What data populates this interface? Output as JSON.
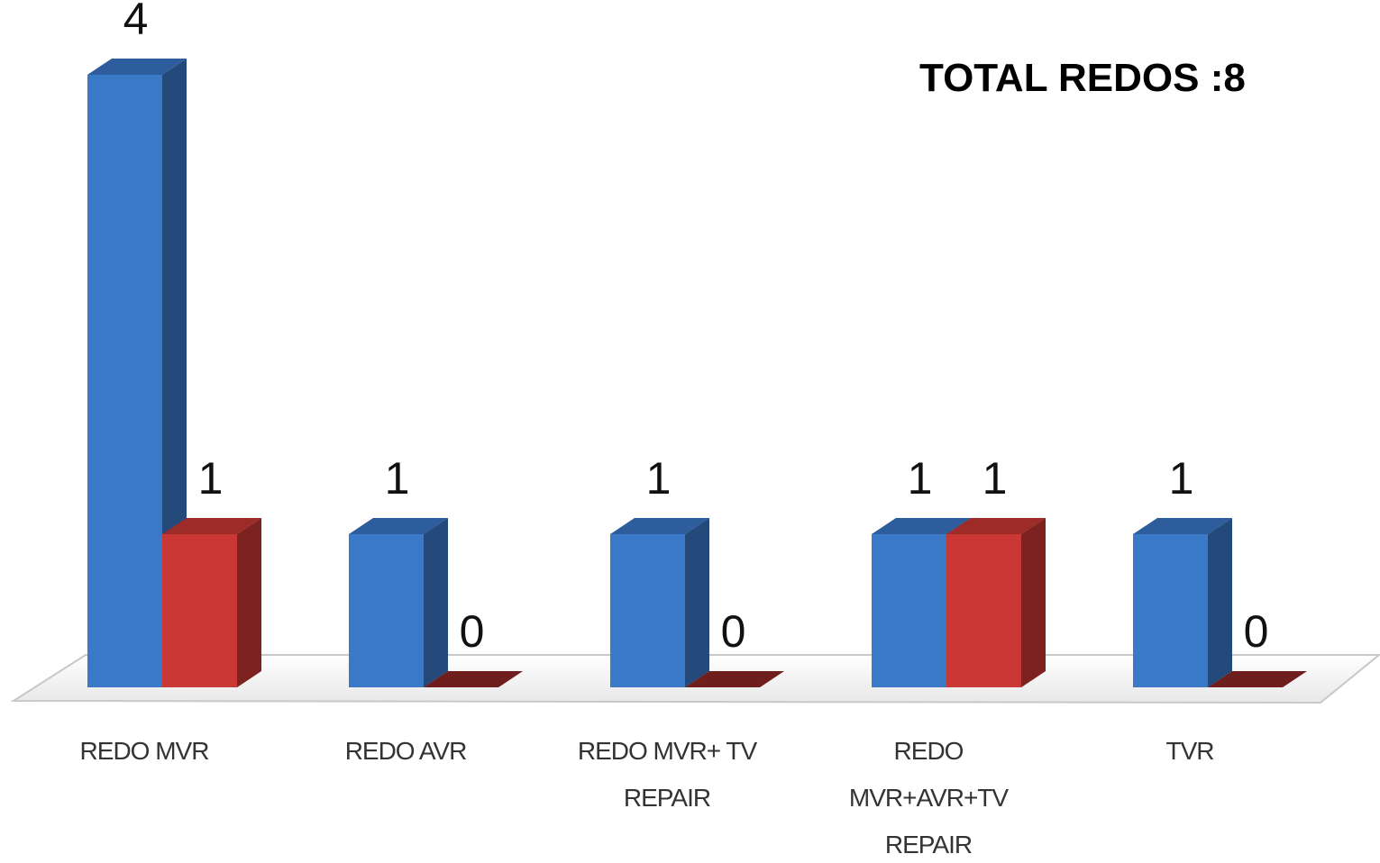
{
  "chart_data": {
    "type": "bar3d",
    "annotation": "TOTAL REDOS :8",
    "categories": [
      "REDO MVR",
      "REDO AVR",
      "REDO MVR+ TV REPAIR",
      "REDO MVR+AVR+TV REPAIR",
      "TVR"
    ],
    "series": [
      {
        "color": "#3a78c8",
        "values": [
          4,
          1,
          1,
          1,
          1
        ]
      },
      {
        "color": "#c93834",
        "values": [
          1,
          0,
          0,
          1,
          0
        ]
      }
    ]
  }
}
